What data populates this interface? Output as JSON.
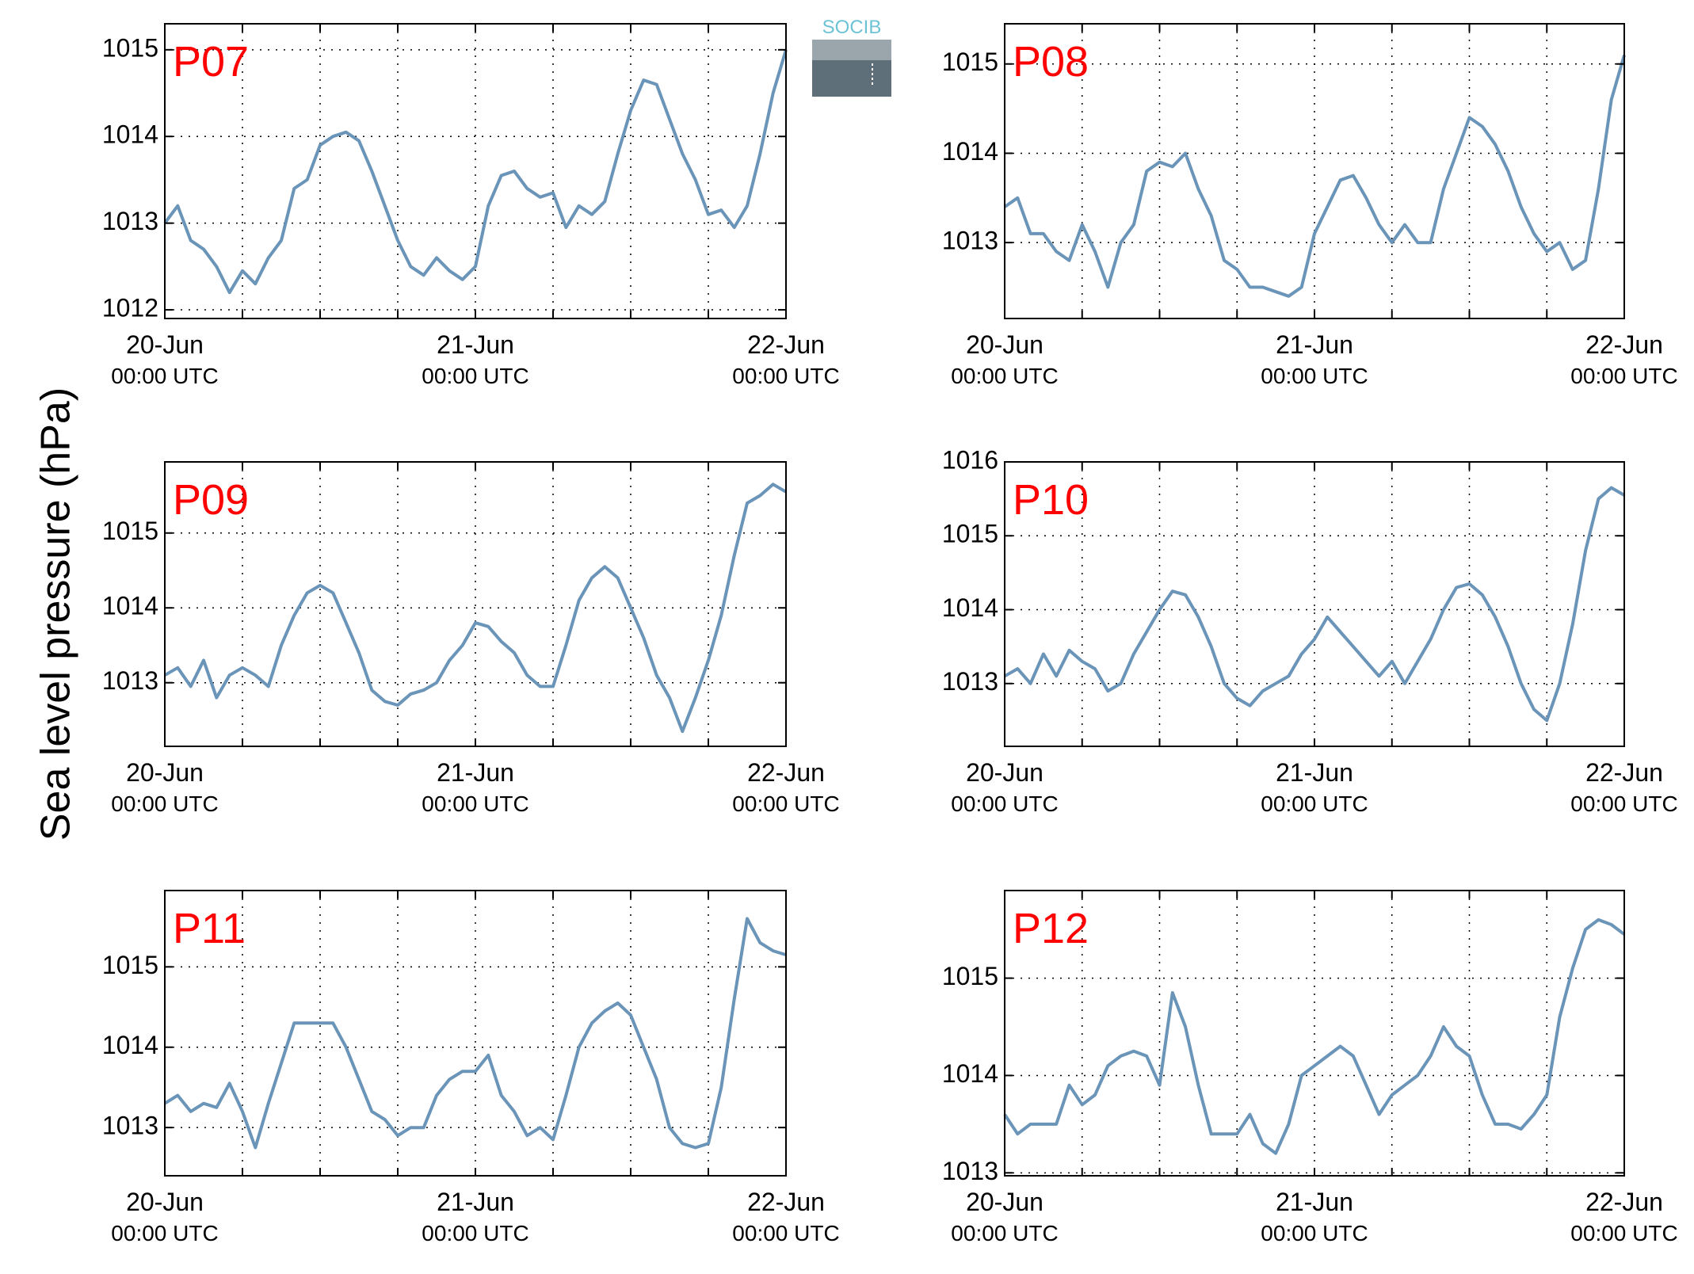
{
  "y_axis_label": "Sea level pressure (hPa)",
  "logo": {
    "text": "SOCIB"
  },
  "colors": {
    "line": "#6a94b8",
    "panel_title": "#ff0000",
    "logo_text": "#6cc3d5",
    "logo_dark": "#2d4350",
    "logo_light": "#9aa5ac"
  },
  "x_tick_labels": [
    {
      "date": "20-Jun",
      "time": "00:00 UTC"
    },
    {
      "date": "21-Jun",
      "time": "00:00 UTC"
    },
    {
      "date": "22-Jun",
      "time": "00:00 UTC"
    }
  ],
  "chart_data": [
    {
      "type": "line",
      "title": "P07",
      "xlabel": "",
      "ylabel": "",
      "xlim": [
        "2015-06-20T00:00",
        "2015-06-22T00:00"
      ],
      "ylim": [
        1011.9,
        1015.3
      ],
      "yticks": [
        1012,
        1013,
        1014,
        1015
      ],
      "grid": true,
      "x": [
        "2015-06-20T00:00",
        "2015-06-20T01:00",
        "2015-06-20T02:00",
        "2015-06-20T03:00",
        "2015-06-20T04:00",
        "2015-06-20T05:00",
        "2015-06-20T06:00",
        "2015-06-20T07:00",
        "2015-06-20T08:00",
        "2015-06-20T09:00",
        "2015-06-20T10:00",
        "2015-06-20T11:00",
        "2015-06-20T12:00",
        "2015-06-20T13:00",
        "2015-06-20T14:00",
        "2015-06-20T15:00",
        "2015-06-20T16:00",
        "2015-06-20T17:00",
        "2015-06-20T18:00",
        "2015-06-20T19:00",
        "2015-06-20T20:00",
        "2015-06-20T21:00",
        "2015-06-20T22:00",
        "2015-06-20T23:00",
        "2015-06-21T00:00",
        "2015-06-21T01:00",
        "2015-06-21T02:00",
        "2015-06-21T03:00",
        "2015-06-21T04:00",
        "2015-06-21T05:00",
        "2015-06-21T06:00",
        "2015-06-21T07:00",
        "2015-06-21T08:00",
        "2015-06-21T09:00",
        "2015-06-21T10:00",
        "2015-06-21T11:00",
        "2015-06-21T12:00",
        "2015-06-21T13:00",
        "2015-06-21T14:00",
        "2015-06-21T15:00",
        "2015-06-21T16:00",
        "2015-06-21T17:00",
        "2015-06-21T18:00",
        "2015-06-21T19:00",
        "2015-06-21T20:00",
        "2015-06-21T21:00",
        "2015-06-21T22:00",
        "2015-06-21T23:00",
        "2015-06-22T00:00"
      ],
      "y": [
        1013.0,
        1013.2,
        1012.8,
        1012.7,
        1012.5,
        1012.2,
        1012.45,
        1012.3,
        1012.6,
        1012.8,
        1013.4,
        1013.5,
        1013.9,
        1014.0,
        1014.05,
        1013.95,
        1013.6,
        1013.2,
        1012.8,
        1012.5,
        1012.4,
        1012.6,
        1012.45,
        1012.35,
        1012.5,
        1013.2,
        1013.55,
        1013.6,
        1013.4,
        1013.3,
        1013.35,
        1012.95,
        1013.2,
        1013.1,
        1013.25,
        1013.8,
        1014.3,
        1014.65,
        1014.6,
        1014.2,
        1013.8,
        1013.5,
        1013.1,
        1013.15,
        1012.95,
        1013.2,
        1013.8,
        1014.5,
        1015.0
      ]
    },
    {
      "type": "line",
      "title": "P08",
      "xlabel": "",
      "ylabel": "",
      "xlim": [
        "2015-06-20T00:00",
        "2015-06-22T00:00"
      ],
      "ylim": [
        1012.15,
        1015.45
      ],
      "yticks": [
        1013,
        1014,
        1015
      ],
      "grid": true,
      "x": [
        "2015-06-20T00:00",
        "2015-06-20T01:00",
        "2015-06-20T02:00",
        "2015-06-20T03:00",
        "2015-06-20T04:00",
        "2015-06-20T05:00",
        "2015-06-20T06:00",
        "2015-06-20T07:00",
        "2015-06-20T08:00",
        "2015-06-20T09:00",
        "2015-06-20T10:00",
        "2015-06-20T11:00",
        "2015-06-20T12:00",
        "2015-06-20T13:00",
        "2015-06-20T14:00",
        "2015-06-20T15:00",
        "2015-06-20T16:00",
        "2015-06-20T17:00",
        "2015-06-20T18:00",
        "2015-06-20T19:00",
        "2015-06-20T20:00",
        "2015-06-20T21:00",
        "2015-06-20T22:00",
        "2015-06-20T23:00",
        "2015-06-21T00:00",
        "2015-06-21T01:00",
        "2015-06-21T02:00",
        "2015-06-21T03:00",
        "2015-06-21T04:00",
        "2015-06-21T05:00",
        "2015-06-21T06:00",
        "2015-06-21T07:00",
        "2015-06-21T08:00",
        "2015-06-21T09:00",
        "2015-06-21T10:00",
        "2015-06-21T11:00",
        "2015-06-21T12:00",
        "2015-06-21T13:00",
        "2015-06-21T14:00",
        "2015-06-21T15:00",
        "2015-06-21T16:00",
        "2015-06-21T17:00",
        "2015-06-21T18:00",
        "2015-06-21T19:00",
        "2015-06-21T20:00",
        "2015-06-21T21:00",
        "2015-06-21T22:00",
        "2015-06-21T23:00",
        "2015-06-22T00:00"
      ],
      "y": [
        1013.4,
        1013.5,
        1013.1,
        1013.1,
        1012.9,
        1012.8,
        1013.2,
        1012.9,
        1012.5,
        1013.0,
        1013.2,
        1013.8,
        1013.9,
        1013.85,
        1014.0,
        1013.6,
        1013.3,
        1012.8,
        1012.7,
        1012.5,
        1012.5,
        1012.45,
        1012.4,
        1012.5,
        1013.1,
        1013.4,
        1013.7,
        1013.75,
        1013.5,
        1013.2,
        1013.0,
        1013.2,
        1013.0,
        1013.0,
        1013.6,
        1014.0,
        1014.4,
        1014.3,
        1014.1,
        1013.8,
        1013.4,
        1013.1,
        1012.9,
        1013.0,
        1012.7,
        1012.8,
        1013.6,
        1014.6,
        1015.1
      ]
    },
    {
      "type": "line",
      "title": "P09",
      "xlabel": "",
      "ylabel": "",
      "xlim": [
        "2015-06-20T00:00",
        "2015-06-22T00:00"
      ],
      "ylim": [
        1012.15,
        1015.95
      ],
      "yticks": [
        1013,
        1014,
        1015
      ],
      "grid": true,
      "x": [
        "2015-06-20T00:00",
        "2015-06-20T01:00",
        "2015-06-20T02:00",
        "2015-06-20T03:00",
        "2015-06-20T04:00",
        "2015-06-20T05:00",
        "2015-06-20T06:00",
        "2015-06-20T07:00",
        "2015-06-20T08:00",
        "2015-06-20T09:00",
        "2015-06-20T10:00",
        "2015-06-20T11:00",
        "2015-06-20T12:00",
        "2015-06-20T13:00",
        "2015-06-20T14:00",
        "2015-06-20T15:00",
        "2015-06-20T16:00",
        "2015-06-20T17:00",
        "2015-06-20T18:00",
        "2015-06-20T19:00",
        "2015-06-20T20:00",
        "2015-06-20T21:00",
        "2015-06-20T22:00",
        "2015-06-20T23:00",
        "2015-06-21T00:00",
        "2015-06-21T01:00",
        "2015-06-21T02:00",
        "2015-06-21T03:00",
        "2015-06-21T04:00",
        "2015-06-21T05:00",
        "2015-06-21T06:00",
        "2015-06-21T07:00",
        "2015-06-21T08:00",
        "2015-06-21T09:00",
        "2015-06-21T10:00",
        "2015-06-21T11:00",
        "2015-06-21T12:00",
        "2015-06-21T13:00",
        "2015-06-21T14:00",
        "2015-06-21T15:00",
        "2015-06-21T16:00",
        "2015-06-21T17:00",
        "2015-06-21T18:00",
        "2015-06-21T19:00",
        "2015-06-21T20:00",
        "2015-06-21T21:00",
        "2015-06-21T22:00",
        "2015-06-21T23:00",
        "2015-06-22T00:00"
      ],
      "y": [
        1013.1,
        1013.2,
        1012.95,
        1013.3,
        1012.8,
        1013.1,
        1013.2,
        1013.1,
        1012.95,
        1013.5,
        1013.9,
        1014.2,
        1014.3,
        1014.2,
        1013.8,
        1013.4,
        1012.9,
        1012.75,
        1012.7,
        1012.85,
        1012.9,
        1013.0,
        1013.3,
        1013.5,
        1013.8,
        1013.75,
        1013.55,
        1013.4,
        1013.1,
        1012.95,
        1012.95,
        1013.5,
        1014.1,
        1014.4,
        1014.55,
        1014.4,
        1014.0,
        1013.6,
        1013.1,
        1012.8,
        1012.35,
        1012.8,
        1013.3,
        1013.9,
        1014.7,
        1015.4,
        1015.5,
        1015.65,
        1015.55
      ]
    },
    {
      "type": "line",
      "title": "P10",
      "xlabel": "",
      "ylabel": "",
      "xlim": [
        "2015-06-20T00:00",
        "2015-06-22T00:00"
      ],
      "ylim": [
        1012.15,
        1016.0
      ],
      "yticks": [
        1013,
        1014,
        1015,
        1016
      ],
      "grid": true,
      "x": [
        "2015-06-20T00:00",
        "2015-06-20T01:00",
        "2015-06-20T02:00",
        "2015-06-20T03:00",
        "2015-06-20T04:00",
        "2015-06-20T05:00",
        "2015-06-20T06:00",
        "2015-06-20T07:00",
        "2015-06-20T08:00",
        "2015-06-20T09:00",
        "2015-06-20T10:00",
        "2015-06-20T11:00",
        "2015-06-20T12:00",
        "2015-06-20T13:00",
        "2015-06-20T14:00",
        "2015-06-20T15:00",
        "2015-06-20T16:00",
        "2015-06-20T17:00",
        "2015-06-20T18:00",
        "2015-06-20T19:00",
        "2015-06-20T20:00",
        "2015-06-20T21:00",
        "2015-06-20T22:00",
        "2015-06-20T23:00",
        "2015-06-21T00:00",
        "2015-06-21T01:00",
        "2015-06-21T02:00",
        "2015-06-21T03:00",
        "2015-06-21T04:00",
        "2015-06-21T05:00",
        "2015-06-21T06:00",
        "2015-06-21T07:00",
        "2015-06-21T08:00",
        "2015-06-21T09:00",
        "2015-06-21T10:00",
        "2015-06-21T11:00",
        "2015-06-21T12:00",
        "2015-06-21T13:00",
        "2015-06-21T14:00",
        "2015-06-21T15:00",
        "2015-06-21T16:00",
        "2015-06-21T17:00",
        "2015-06-21T18:00",
        "2015-06-21T19:00",
        "2015-06-21T20:00",
        "2015-06-21T21:00",
        "2015-06-21T22:00",
        "2015-06-21T23:00",
        "2015-06-22T00:00"
      ],
      "y": [
        1013.1,
        1013.2,
        1013.0,
        1013.4,
        1013.1,
        1013.45,
        1013.3,
        1013.2,
        1012.9,
        1013.0,
        1013.4,
        1013.7,
        1014.0,
        1014.25,
        1014.2,
        1013.9,
        1013.5,
        1013.0,
        1012.8,
        1012.7,
        1012.9,
        1013.0,
        1013.1,
        1013.4,
        1013.6,
        1013.9,
        1013.7,
        1013.5,
        1013.3,
        1013.1,
        1013.3,
        1013.0,
        1013.3,
        1013.6,
        1014.0,
        1014.3,
        1014.35,
        1014.2,
        1013.9,
        1013.5,
        1013.0,
        1012.65,
        1012.5,
        1013.0,
        1013.8,
        1014.8,
        1015.5,
        1015.65,
        1015.55
      ]
    },
    {
      "type": "line",
      "title": "P11",
      "xlabel": "",
      "ylabel": "",
      "xlim": [
        "2015-06-20T00:00",
        "2015-06-22T00:00"
      ],
      "ylim": [
        1012.4,
        1015.95
      ],
      "yticks": [
        1013,
        1014,
        1015
      ],
      "grid": true,
      "x": [
        "2015-06-20T00:00",
        "2015-06-20T01:00",
        "2015-06-20T02:00",
        "2015-06-20T03:00",
        "2015-06-20T04:00",
        "2015-06-20T05:00",
        "2015-06-20T06:00",
        "2015-06-20T07:00",
        "2015-06-20T08:00",
        "2015-06-20T09:00",
        "2015-06-20T10:00",
        "2015-06-20T11:00",
        "2015-06-20T12:00",
        "2015-06-20T13:00",
        "2015-06-20T14:00",
        "2015-06-20T15:00",
        "2015-06-20T16:00",
        "2015-06-20T17:00",
        "2015-06-20T18:00",
        "2015-06-20T19:00",
        "2015-06-20T20:00",
        "2015-06-20T21:00",
        "2015-06-20T22:00",
        "2015-06-20T23:00",
        "2015-06-21T00:00",
        "2015-06-21T01:00",
        "2015-06-21T02:00",
        "2015-06-21T03:00",
        "2015-06-21T04:00",
        "2015-06-21T05:00",
        "2015-06-21T06:00",
        "2015-06-21T07:00",
        "2015-06-21T08:00",
        "2015-06-21T09:00",
        "2015-06-21T10:00",
        "2015-06-21T11:00",
        "2015-06-21T12:00",
        "2015-06-21T13:00",
        "2015-06-21T14:00",
        "2015-06-21T15:00",
        "2015-06-21T16:00",
        "2015-06-21T17:00",
        "2015-06-21T18:00",
        "2015-06-21T19:00",
        "2015-06-21T20:00",
        "2015-06-21T21:00",
        "2015-06-21T22:00",
        "2015-06-21T23:00",
        "2015-06-22T00:00"
      ],
      "y": [
        1013.3,
        1013.4,
        1013.2,
        1013.3,
        1013.25,
        1013.55,
        1013.2,
        1012.75,
        1013.3,
        1013.8,
        1014.3,
        1014.3,
        1014.3,
        1014.3,
        1014.0,
        1013.6,
        1013.2,
        1013.1,
        1012.9,
        1013.0,
        1013.0,
        1013.4,
        1013.6,
        1013.7,
        1013.7,
        1013.9,
        1013.4,
        1013.2,
        1012.9,
        1013.0,
        1012.85,
        1013.4,
        1014.0,
        1014.3,
        1014.45,
        1014.55,
        1014.4,
        1014.0,
        1013.6,
        1013.0,
        1012.8,
        1012.75,
        1012.8,
        1013.5,
        1014.6,
        1015.6,
        1015.3,
        1015.2,
        1015.15
      ]
    },
    {
      "type": "line",
      "title": "P12",
      "xlabel": "",
      "ylabel": "",
      "xlim": [
        "2015-06-20T00:00",
        "2015-06-22T00:00"
      ],
      "ylim": [
        1012.97,
        1015.9
      ],
      "yticks": [
        1013,
        1014,
        1015
      ],
      "grid": true,
      "x": [
        "2015-06-20T00:00",
        "2015-06-20T01:00",
        "2015-06-20T02:00",
        "2015-06-20T03:00",
        "2015-06-20T04:00",
        "2015-06-20T05:00",
        "2015-06-20T06:00",
        "2015-06-20T07:00",
        "2015-06-20T08:00",
        "2015-06-20T09:00",
        "2015-06-20T10:00",
        "2015-06-20T11:00",
        "2015-06-20T12:00",
        "2015-06-20T13:00",
        "2015-06-20T14:00",
        "2015-06-20T15:00",
        "2015-06-20T16:00",
        "2015-06-20T17:00",
        "2015-06-20T18:00",
        "2015-06-20T19:00",
        "2015-06-20T20:00",
        "2015-06-20T21:00",
        "2015-06-20T22:00",
        "2015-06-20T23:00",
        "2015-06-21T00:00",
        "2015-06-21T01:00",
        "2015-06-21T02:00",
        "2015-06-21T03:00",
        "2015-06-21T04:00",
        "2015-06-21T05:00",
        "2015-06-21T06:00",
        "2015-06-21T07:00",
        "2015-06-21T08:00",
        "2015-06-21T09:00",
        "2015-06-21T10:00",
        "2015-06-21T11:00",
        "2015-06-21T12:00",
        "2015-06-21T13:00",
        "2015-06-21T14:00",
        "2015-06-21T15:00",
        "2015-06-21T16:00",
        "2015-06-21T17:00",
        "2015-06-21T18:00",
        "2015-06-21T19:00",
        "2015-06-21T20:00",
        "2015-06-21T21:00",
        "2015-06-21T22:00",
        "2015-06-21T23:00",
        "2015-06-22T00:00"
      ],
      "y": [
        1013.6,
        1013.4,
        1013.5,
        1013.5,
        1013.5,
        1013.9,
        1013.7,
        1013.8,
        1014.1,
        1014.2,
        1014.25,
        1014.2,
        1013.9,
        1014.85,
        1014.5,
        1013.9,
        1013.4,
        1013.4,
        1013.4,
        1013.6,
        1013.3,
        1013.2,
        1013.5,
        1014.0,
        1014.1,
        1014.2,
        1014.3,
        1014.2,
        1013.9,
        1013.6,
        1013.8,
        1013.9,
        1014.0,
        1014.2,
        1014.5,
        1014.3,
        1014.2,
        1013.8,
        1013.5,
        1013.5,
        1013.45,
        1013.6,
        1013.8,
        1014.6,
        1015.1,
        1015.5,
        1015.6,
        1015.55,
        1015.45
      ]
    }
  ]
}
